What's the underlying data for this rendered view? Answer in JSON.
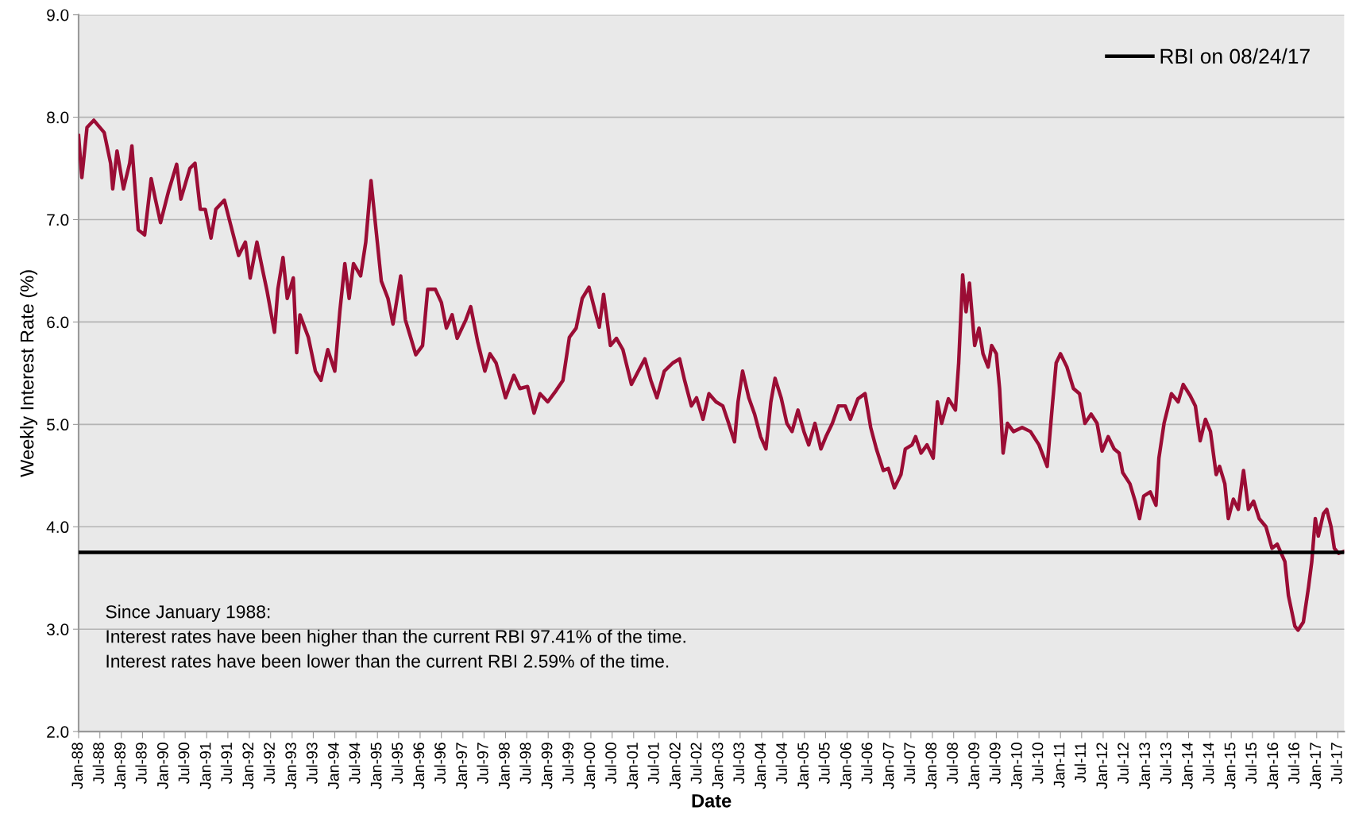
{
  "chart_data": {
    "type": "line",
    "xlabel": "Date",
    "ylabel": "Weekly Interest Rate (%)",
    "x": [
      "1988-01-01",
      "1988-01-29",
      "1988-03-13",
      "1988-05-10",
      "1988-08-07",
      "1988-10-01",
      "1988-10-19",
      "1988-11-25",
      "1989-01-19",
      "1989-03-13",
      "1989-04-01",
      "1989-05-25",
      "1989-07-19",
      "1989-09-13",
      "1989-10-19",
      "1989-12-02",
      "1990-02-07",
      "1990-04-19",
      "1990-05-25",
      "1990-08-10",
      "1990-09-23",
      "1990-11-07",
      "1990-12-20",
      "1991-02-07",
      "1991-03-20",
      "1991-06-01",
      "1991-07-25",
      "1991-10-01",
      "1991-11-28",
      "1992-01-08",
      "1992-03-06",
      "1992-04-25",
      "1992-06-01",
      "1992-08-03",
      "1992-09-01",
      "1992-10-15",
      "1992-11-20",
      "1993-01-11",
      "1993-02-09",
      "1993-03-09",
      "1993-05-20",
      "1993-07-19",
      "1993-09-05",
      "1993-11-02",
      "1994-01-01",
      "1994-02-13",
      "1994-03-28",
      "1994-05-04",
      "1994-06-10",
      "1994-08-10",
      "1994-09-23",
      "1994-11-07",
      "1994-12-20",
      "1995-02-03",
      "1995-04-01",
      "1995-05-14",
      "1995-07-19",
      "1995-08-28",
      "1995-10-12",
      "1995-11-25",
      "1996-01-22",
      "1996-03-06",
      "1996-05-10",
      "1996-07-01",
      "1996-08-13",
      "1996-10-01",
      "1996-11-13",
      "1997-01-26",
      "1997-03-09",
      "1997-05-07",
      "1997-07-08",
      "1997-08-21",
      "1997-10-12",
      "1997-12-02",
      "1998-01-01",
      "1998-03-13",
      "1998-05-04",
      "1998-07-08",
      "1998-09-02",
      "1998-10-23",
      "1998-12-28",
      "1999-03-09",
      "1999-05-07",
      "1999-07-01",
      "1999-08-28",
      "1999-10-19",
      "1999-12-16",
      "2000-02-07",
      "2000-03-13",
      "2000-04-19",
      "2000-06-16",
      "2000-08-07",
      "2000-10-01",
      "2000-12-13",
      "2001-02-10",
      "2001-04-07",
      "2001-05-28",
      "2001-07-19",
      "2001-09-20",
      "2001-12-02",
      "2002-01-29",
      "2002-03-13",
      "2002-05-10",
      "2002-06-23",
      "2002-08-17",
      "2002-10-07",
      "2002-12-07",
      "2003-02-03",
      "2003-03-25",
      "2003-05-14",
      "2003-06-13",
      "2003-07-22",
      "2003-09-13",
      "2003-11-02",
      "2003-12-23",
      "2004-02-07",
      "2004-03-20",
      "2004-04-25",
      "2004-06-16",
      "2004-08-04",
      "2004-09-17",
      "2004-11-07",
      "2004-12-28",
      "2005-02-07",
      "2005-04-01",
      "2005-05-22",
      "2005-07-04",
      "2005-08-28",
      "2005-10-19",
      "2005-12-16",
      "2006-01-29",
      "2006-04-04",
      "2006-06-04",
      "2006-07-22",
      "2006-09-09",
      "2006-11-07",
      "2006-12-20",
      "2007-02-10",
      "2007-04-07",
      "2007-05-14",
      "2007-07-11",
      "2007-08-10",
      "2007-09-26",
      "2007-11-16",
      "2008-01-08",
      "2008-02-13",
      "2008-03-20",
      "2008-05-17",
      "2008-07-16",
      "2008-08-13",
      "2008-09-16",
      "2008-10-15",
      "2008-11-13",
      "2008-12-28",
      "2009-02-03",
      "2009-03-09",
      "2009-04-22",
      "2009-05-22",
      "2009-07-01",
      "2009-07-29",
      "2009-08-28",
      "2009-10-04",
      "2009-11-25",
      "2010-02-07",
      "2010-04-19",
      "2010-07-01",
      "2010-09-09",
      "2010-10-23",
      "2010-11-25",
      "2011-01-01",
      "2011-02-25",
      "2011-04-22",
      "2011-06-13",
      "2011-07-29",
      "2011-09-20",
      "2011-11-10",
      "2011-12-23",
      "2012-02-13",
      "2012-04-04",
      "2012-05-17",
      "2012-06-16",
      "2012-08-17",
      "2012-10-01",
      "2012-11-07",
      "2012-12-13",
      "2013-02-07",
      "2013-03-28",
      "2013-04-22",
      "2013-06-05",
      "2013-08-07",
      "2013-10-04",
      "2013-11-16",
      "2014-01-15",
      "2014-02-28",
      "2014-04-10",
      "2014-05-25",
      "2014-07-07",
      "2014-08-25",
      "2014-09-23",
      "2014-11-07",
      "2014-12-07",
      "2015-01-19",
      "2015-03-02",
      "2015-04-16",
      "2015-05-28",
      "2015-07-11",
      "2015-08-28",
      "2015-10-25",
      "2015-12-16",
      "2016-01-29",
      "2016-04-04",
      "2016-05-04",
      "2016-06-28",
      "2016-07-25",
      "2016-09-09",
      "2016-10-23",
      "2016-11-20",
      "2016-12-20",
      "2017-01-15",
      "2017-02-28",
      "2017-03-28",
      "2017-05-04",
      "2017-06-01",
      "2017-07-08",
      "2017-08-21"
    ],
    "series": [
      {
        "color": "#9b0d35",
        "values": [
          7.82,
          7.41,
          7.9,
          7.97,
          7.85,
          7.55,
          7.3,
          7.67,
          7.3,
          7.55,
          7.72,
          6.9,
          6.85,
          7.4,
          7.2,
          6.97,
          7.27,
          7.54,
          7.2,
          7.5,
          7.55,
          7.1,
          7.1,
          6.82,
          7.1,
          7.19,
          6.95,
          6.65,
          6.78,
          6.43,
          6.78,
          6.5,
          6.3,
          5.9,
          6.32,
          6.63,
          6.23,
          6.43,
          5.7,
          6.07,
          5.85,
          5.52,
          5.43,
          5.73,
          5.52,
          6.1,
          6.57,
          6.23,
          6.57,
          6.45,
          6.78,
          7.38,
          6.9,
          6.4,
          6.23,
          5.98,
          6.45,
          6.02,
          5.85,
          5.68,
          5.77,
          6.32,
          6.32,
          6.19,
          5.94,
          6.07,
          5.84,
          6.02,
          6.15,
          5.81,
          5.52,
          5.69,
          5.6,
          5.39,
          5.26,
          5.48,
          5.35,
          5.37,
          5.11,
          5.3,
          5.22,
          5.33,
          5.43,
          5.85,
          5.94,
          6.23,
          6.34,
          6.1,
          5.95,
          6.27,
          5.77,
          5.84,
          5.73,
          5.39,
          5.52,
          5.64,
          5.43,
          5.26,
          5.52,
          5.6,
          5.64,
          5.43,
          5.18,
          5.26,
          5.05,
          5.3,
          5.22,
          5.18,
          5.01,
          4.83,
          5.22,
          5.52,
          5.26,
          5.1,
          4.88,
          4.76,
          5.22,
          5.45,
          5.26,
          5.01,
          4.93,
          5.14,
          4.93,
          4.8,
          5.01,
          4.76,
          4.88,
          5.01,
          5.18,
          5.18,
          5.05,
          5.25,
          5.3,
          4.97,
          4.76,
          4.55,
          4.57,
          4.38,
          4.51,
          4.76,
          4.8,
          4.88,
          4.72,
          4.8,
          4.67,
          5.22,
          5.01,
          5.25,
          5.14,
          5.6,
          6.46,
          6.1,
          6.38,
          5.77,
          5.94,
          5.69,
          5.56,
          5.77,
          5.69,
          5.35,
          4.72,
          5.01,
          4.93,
          4.97,
          4.93,
          4.8,
          4.59,
          5.18,
          5.6,
          5.69,
          5.56,
          5.35,
          5.3,
          5.01,
          5.1,
          5.01,
          4.74,
          4.88,
          4.76,
          4.72,
          4.53,
          4.42,
          4.25,
          4.08,
          4.3,
          4.34,
          4.21,
          4.67,
          5.01,
          5.3,
          5.22,
          5.39,
          5.28,
          5.18,
          4.84,
          5.05,
          4.93,
          4.51,
          4.59,
          4.42,
          4.08,
          4.27,
          4.17,
          4.55,
          4.17,
          4.25,
          4.08,
          4.0,
          3.79,
          3.83,
          3.66,
          3.33,
          3.03,
          2.99,
          3.07,
          3.41,
          3.66,
          4.08,
          3.91,
          4.13,
          4.17,
          4.0,
          3.79,
          3.74,
          3.76
        ]
      }
    ],
    "ref_lines": [
      {
        "axis": "y",
        "value": 3.75,
        "label": "RBI on 08/24/17",
        "color": "#000000"
      }
    ],
    "annotations": [
      "Since January 1988:",
      "Interest rates have been higher than the current RBI 97.41% of the time.",
      "Interest rates have been lower than the current RBI 2.59% of the time."
    ],
    "xlim": [
      "1988-01-01",
      "2017-08-24"
    ],
    "xticks": [
      {
        "value": "1988-01-01",
        "label": "Jan-88"
      },
      {
        "value": "1988-07-01",
        "label": "Jul-88"
      },
      {
        "value": "1989-01-01",
        "label": "Jan-89"
      },
      {
        "value": "1989-07-01",
        "label": "Jul-89"
      },
      {
        "value": "1990-01-01",
        "label": "Jan-90"
      },
      {
        "value": "1990-07-01",
        "label": "Jul-90"
      },
      {
        "value": "1991-01-01",
        "label": "Jan-91"
      },
      {
        "value": "1991-07-01",
        "label": "Jul-91"
      },
      {
        "value": "1992-01-01",
        "label": "Jan-92"
      },
      {
        "value": "1992-07-01",
        "label": "Jul-92"
      },
      {
        "value": "1993-01-01",
        "label": "Jan-93"
      },
      {
        "value": "1993-07-01",
        "label": "Jul-93"
      },
      {
        "value": "1994-01-01",
        "label": "Jan-94"
      },
      {
        "value": "1994-07-01",
        "label": "Jul-94"
      },
      {
        "value": "1995-01-01",
        "label": "Jan-95"
      },
      {
        "value": "1995-07-01",
        "label": "Jul-95"
      },
      {
        "value": "1996-01-01",
        "label": "Jan-96"
      },
      {
        "value": "1996-07-01",
        "label": "Jul-96"
      },
      {
        "value": "1997-01-01",
        "label": "Jan-97"
      },
      {
        "value": "1997-07-01",
        "label": "Jul-97"
      },
      {
        "value": "1998-01-01",
        "label": "Jan-98"
      },
      {
        "value": "1998-07-01",
        "label": "Jul-98"
      },
      {
        "value": "1999-01-01",
        "label": "Jan-99"
      },
      {
        "value": "1999-07-01",
        "label": "Jul-99"
      },
      {
        "value": "2000-01-01",
        "label": "Jan-00"
      },
      {
        "value": "2000-07-01",
        "label": "Jul-00"
      },
      {
        "value": "2001-01-01",
        "label": "Jan-01"
      },
      {
        "value": "2001-07-01",
        "label": "Jul-01"
      },
      {
        "value": "2002-01-01",
        "label": "Jan-02"
      },
      {
        "value": "2002-07-01",
        "label": "Jul-02"
      },
      {
        "value": "2003-01-01",
        "label": "Jan-03"
      },
      {
        "value": "2003-07-01",
        "label": "Jul-03"
      },
      {
        "value": "2004-01-01",
        "label": "Jan-04"
      },
      {
        "value": "2004-07-01",
        "label": "Jul-04"
      },
      {
        "value": "2005-01-01",
        "label": "Jan-05"
      },
      {
        "value": "2005-07-01",
        "label": "Jul-05"
      },
      {
        "value": "2006-01-01",
        "label": "Jan-06"
      },
      {
        "value": "2006-07-01",
        "label": "Jul-06"
      },
      {
        "value": "2007-01-01",
        "label": "Jan-07"
      },
      {
        "value": "2007-07-01",
        "label": "Jul-07"
      },
      {
        "value": "2008-01-01",
        "label": "Jan-08"
      },
      {
        "value": "2008-07-01",
        "label": "Jul-08"
      },
      {
        "value": "2009-01-01",
        "label": "Jan-09"
      },
      {
        "value": "2009-07-01",
        "label": "Jul-09"
      },
      {
        "value": "2010-01-01",
        "label": "Jan-10"
      },
      {
        "value": "2010-07-01",
        "label": "Jul-10"
      },
      {
        "value": "2011-01-01",
        "label": "Jan-11"
      },
      {
        "value": "2011-07-01",
        "label": "Jul-11"
      },
      {
        "value": "2012-01-01",
        "label": "Jan-12"
      },
      {
        "value": "2012-07-01",
        "label": "Jul-12"
      },
      {
        "value": "2013-01-01",
        "label": "Jan-13"
      },
      {
        "value": "2013-07-01",
        "label": "Jul-13"
      },
      {
        "value": "2014-01-01",
        "label": "Jan-14"
      },
      {
        "value": "2014-07-01",
        "label": "Jul-14"
      },
      {
        "value": "2015-01-01",
        "label": "Jan-15"
      },
      {
        "value": "2015-07-01",
        "label": "Jul-15"
      },
      {
        "value": "2016-01-01",
        "label": "Jan-16"
      },
      {
        "value": "2016-07-01",
        "label": "Jul-16"
      },
      {
        "value": "2017-01-01",
        "label": "Jan-17"
      },
      {
        "value": "2017-07-01",
        "label": "Jul-17"
      }
    ],
    "ylim": [
      2,
      9
    ],
    "yticks": [
      {
        "value": 2,
        "label": "2.0"
      },
      {
        "value": 3,
        "label": "3.0"
      },
      {
        "value": 4,
        "label": "4.0"
      },
      {
        "value": 5,
        "label": "5.0"
      },
      {
        "value": 6,
        "label": "6.0"
      },
      {
        "value": 7,
        "label": "7.0"
      },
      {
        "value": 8,
        "label": "8.0"
      },
      {
        "value": 9,
        "label": "9.0"
      }
    ],
    "grid": "y",
    "legend": "top right",
    "line_style": "solid"
  }
}
